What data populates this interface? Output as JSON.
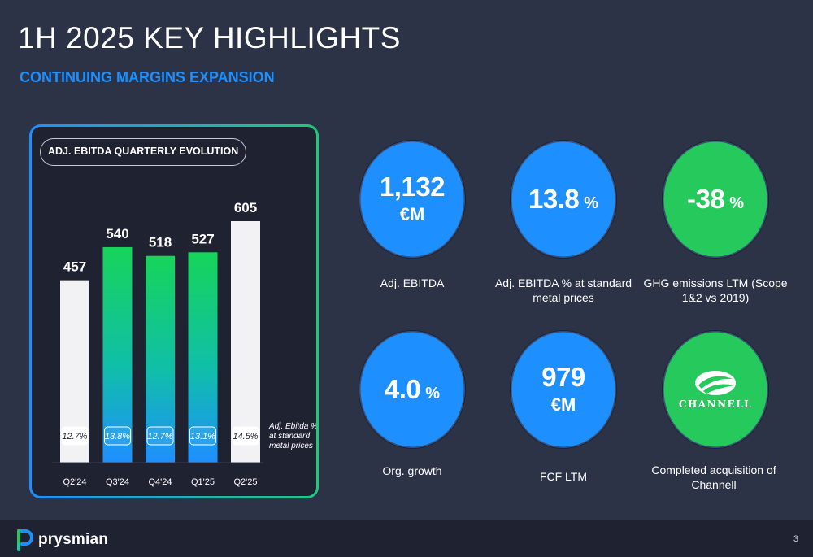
{
  "slide": {
    "title": "1H 2025 KEY HIGHLIGHTS",
    "subtitle": "CONTINUING MARGINS EXPANSION",
    "page_number": "3"
  },
  "chart_panel": {
    "pill_label": "ADJ. EBITDA QUARTERLY EVOLUTION",
    "note": "Adj. Ebitda % at standard metal prices"
  },
  "chart_data": {
    "type": "bar",
    "title": "ADJ. EBITDA QUARTERLY EVOLUTION",
    "categories": [
      "Q2'24",
      "Q3'24",
      "Q4'24",
      "Q1'25",
      "Q2'25"
    ],
    "values": [
      457,
      540,
      518,
      527,
      605
    ],
    "margin_labels": [
      "12.7%",
      "13.8%",
      "12.7%",
      "13.1%",
      "14.5%"
    ],
    "bar_styles": [
      "white",
      "gradient",
      "gradient",
      "gradient",
      "white"
    ],
    "ylim": [
      0,
      640
    ],
    "grid": false,
    "xlabel": "",
    "ylabel": ""
  },
  "kpis": [
    {
      "value": "1,132",
      "unit": "€M",
      "unit_style": "block",
      "label": "Adj. EBITDA",
      "color": "blue"
    },
    {
      "value": "13.8",
      "unit": "%",
      "unit_style": "inline",
      "label": "Adj. EBITDA % at standard metal prices",
      "color": "blue"
    },
    {
      "value": "-38",
      "unit": "%",
      "unit_style": "inline",
      "label": "GHG emissions LTM (Scope 1&2 vs 2019)",
      "color": "green"
    },
    {
      "value": "4.0",
      "unit": "%",
      "unit_style": "inline",
      "label": "Org. growth",
      "color": "blue"
    },
    {
      "value": "979",
      "unit": "€M",
      "unit_style": "block",
      "label": "FCF LTM",
      "color": "blue"
    },
    {
      "logo_text": "CHANNELL",
      "label": "Completed acquisition of Channell",
      "color": "green"
    }
  ],
  "footer": {
    "brand": "prysmian"
  },
  "colors": {
    "background": "#2d3347",
    "accent_blue": "#1e8fff",
    "accent_green": "#26c95c",
    "panel": "#1f2231"
  }
}
